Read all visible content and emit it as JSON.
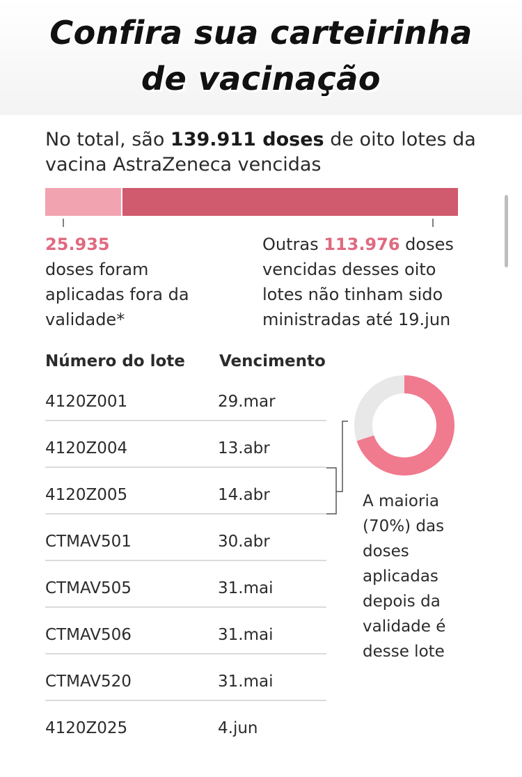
{
  "header": {
    "title_line1": "Confira sua carteirinha",
    "title_line2": "de vacinação"
  },
  "intro": {
    "prefix": "No total, são ",
    "highlight": "139.911 doses",
    "suffix": " de oito lotes da vacina AstraZeneca vencidas"
  },
  "colors": {
    "applied": "#f2a3b0",
    "not_applied": "#d05a6e",
    "donut_main": "#f07a8e",
    "donut_rest": "#e8e8e8",
    "highlight_text": "#e06a80"
  },
  "chart_data": [
    {
      "type": "bar",
      "orientation": "horizontal-stacked",
      "title": "No total, são 139.911 doses de oito lotes da vacina AstraZeneca vencidas",
      "total": 139911,
      "series": [
        {
          "name": "",
          "value": 25935
        },
        {
          "name": "",
          "value": 113976
        }
      ],
      "xlim": [
        0,
        139911
      ]
    },
    {
      "type": "pie",
      "style": "donut",
      "slices": [
        {
          "label": "4120Z004 + 4120Z005",
          "value": 70
        },
        {
          "label": "",
          "value": 30
        }
      ]
    }
  ],
  "annotations": {
    "left_value": "25.935",
    "left_text": "doses foram aplicadas fora da validade*",
    "right_prefix": "Outras ",
    "right_value": "113.976",
    "right_text1": " doses",
    "right_text2": "vencidas desses oito lotes não tinham sido ministradas até 19.jun"
  },
  "table": {
    "headers": [
      "Número do lote",
      "Vencimento"
    ],
    "rows": [
      [
        "4120Z001",
        "29.mar"
      ],
      [
        "4120Z004",
        "13.abr"
      ],
      [
        "4120Z005",
        "14.abr"
      ],
      [
        "CTMAV501",
        "30.abr"
      ],
      [
        "CTMAV505",
        "31.mai"
      ],
      [
        "CTMAV506",
        "31.mai"
      ],
      [
        "CTMAV520",
        "31.mai"
      ],
      [
        "4120Z025",
        "4.jun"
      ]
    ]
  },
  "donut_note": "A maioria (70%) das doses aplicadas depois da validade é desse lote"
}
